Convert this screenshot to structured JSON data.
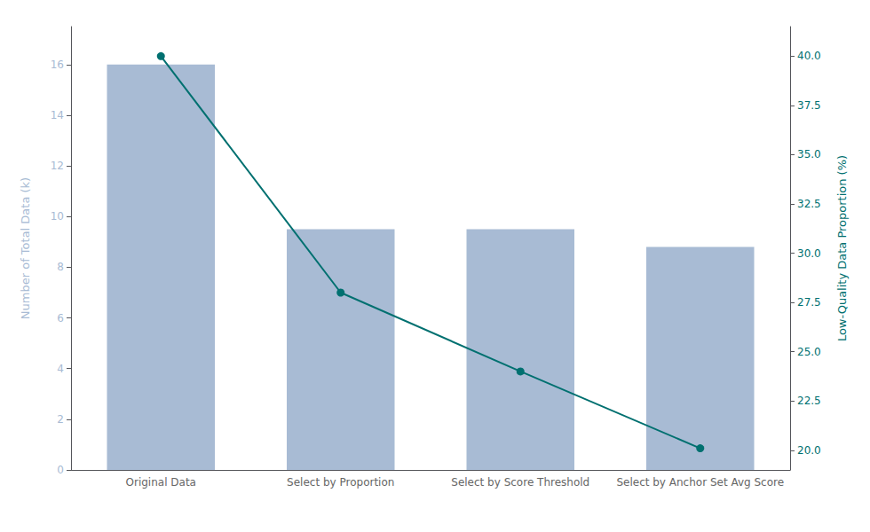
{
  "chart_data": {
    "type": "bar",
    "categories": [
      "Original Data",
      "Select by Proportion",
      "Select by Score Threshold",
      "Select by Anchor Set Avg Score"
    ],
    "ylabel": "Number of Total Data (k)",
    "y2label": "Low-Quality Data Proportion (%)",
    "ylim": [
      0,
      17.5
    ],
    "yticks": [
      0,
      2,
      4,
      6,
      8,
      10,
      12,
      14,
      16
    ],
    "y2lim": [
      19.0,
      41.5
    ],
    "y2ticks": [
      {
        "value": 20.0,
        "label": "20.0"
      },
      22.5,
      {
        "value": 25.0,
        "label": "25.0"
      },
      27.5,
      {
        "value": 30.0,
        "label": "30.0"
      },
      32.5,
      {
        "value": 35.0,
        "label": "35.0"
      },
      37.5,
      {
        "value": 40.0,
        "label": "40.0"
      }
    ],
    "grid": false,
    "series": [
      {
        "type": "bar",
        "color": "#a8bbd4",
        "values": [
          16.0,
          9.5,
          9.5,
          8.8
        ]
      },
      {
        "type": "line",
        "axis": "y2",
        "color": "#007070",
        "marker": "circle",
        "values": [
          40.0,
          28.0,
          24.0,
          20.1
        ]
      }
    ]
  }
}
